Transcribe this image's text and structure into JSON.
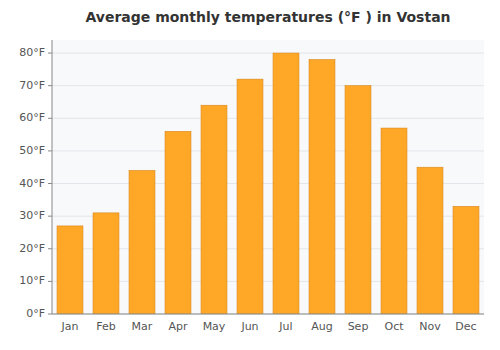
{
  "chart_data": {
    "type": "bar",
    "title": "Average monthly temperatures (°F ) in Vostan",
    "categories": [
      "Jan",
      "Feb",
      "Mar",
      "Apr",
      "May",
      "Jun",
      "Jul",
      "Aug",
      "Sep",
      "Oct",
      "Nov",
      "Dec"
    ],
    "values": [
      27,
      31,
      44,
      56,
      64,
      72,
      80,
      78,
      70,
      57,
      45,
      33
    ],
    "color": "#FFA726",
    "ylim": [
      0,
      84
    ],
    "yticks": [
      {
        "value": 0,
        "label": "0°F"
      },
      {
        "value": 10,
        "label": "10°F"
      },
      {
        "value": 20,
        "label": "20°F"
      },
      {
        "value": 30,
        "label": "30°F"
      },
      {
        "value": 40,
        "label": "40°F"
      },
      {
        "value": 50,
        "label": "50°F"
      },
      {
        "value": 60,
        "label": "60°F"
      },
      {
        "value": 70,
        "label": "70°F"
      },
      {
        "value": 80,
        "label": "80°F"
      }
    ],
    "grid": true
  }
}
